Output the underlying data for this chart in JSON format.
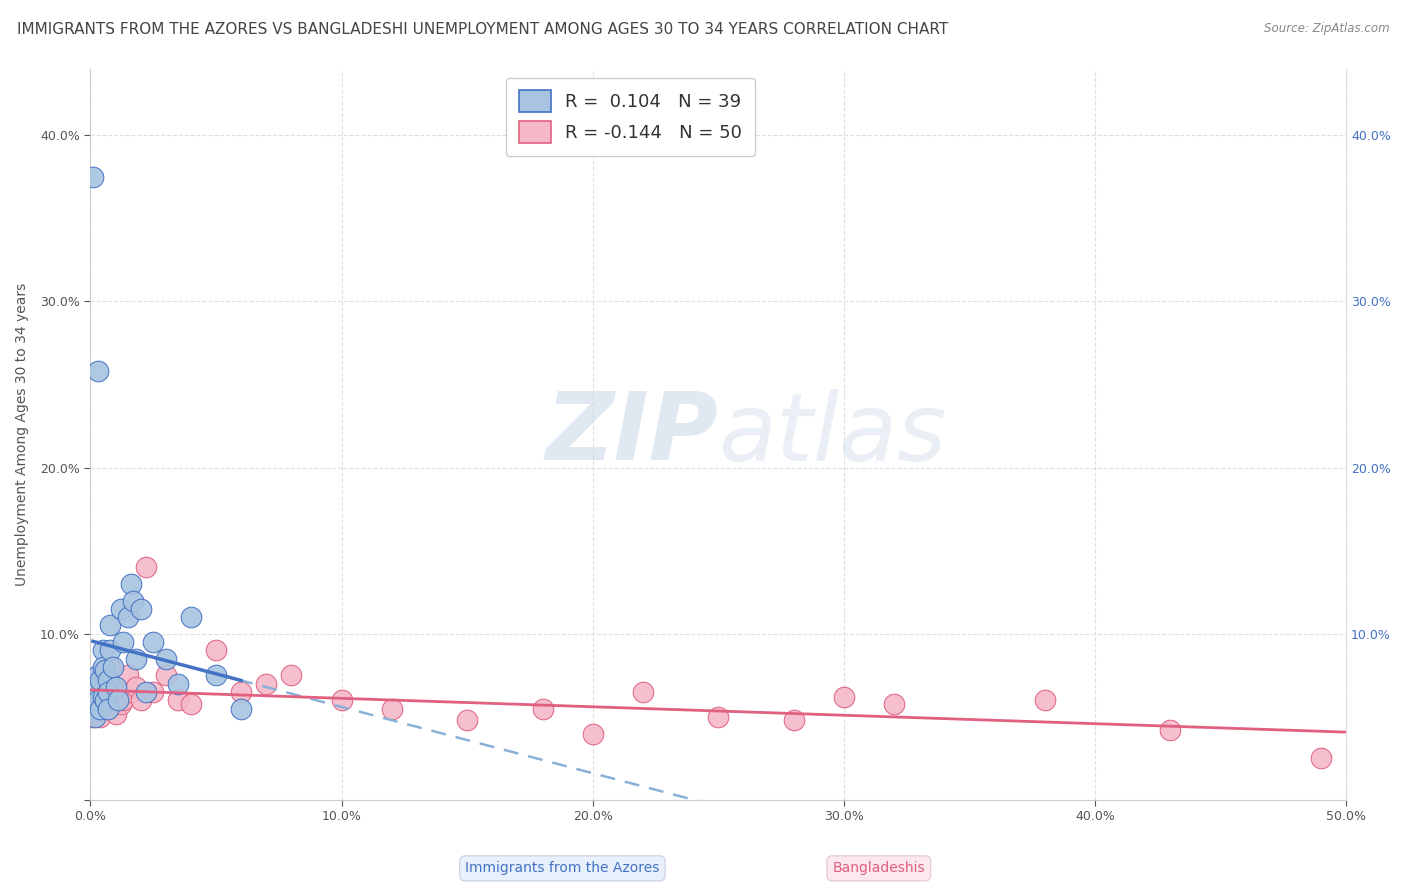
{
  "title": "IMMIGRANTS FROM THE AZORES VS BANGLADESHI UNEMPLOYMENT AMONG AGES 30 TO 34 YEARS CORRELATION CHART",
  "source": "Source: ZipAtlas.com",
  "ylabel": "Unemployment Among Ages 30 to 34 years",
  "xlim": [
    0.0,
    0.5
  ],
  "ylim": [
    0.0,
    0.44
  ],
  "xticks": [
    0.0,
    0.1,
    0.2,
    0.3,
    0.4,
    0.5
  ],
  "xticklabels": [
    "0.0%",
    "10.0%",
    "20.0%",
    "30.0%",
    "40.0%",
    "50.0%"
  ],
  "yticks": [
    0.0,
    0.1,
    0.2,
    0.3,
    0.4
  ],
  "yticklabels": [
    "",
    "10.0%",
    "20.0%",
    "30.0%",
    "40.0%"
  ],
  "right_yticklabels": [
    "",
    "10.0%",
    "20.0%",
    "30.0%",
    "40.0%"
  ],
  "azores_R": 0.104,
  "azores_N": 39,
  "bangladeshi_R": -0.144,
  "bangladeshi_N": 50,
  "azores_color": "#a8c4e0",
  "bangladeshi_color": "#f4b8c8",
  "azores_line_color": "#4472c4",
  "bangladeshi_line_color": "#e06080",
  "dashed_line_color": "#8ab0d8",
  "watermark_zip": "ZIP",
  "watermark_atlas": "atlas",
  "azores_x": [
    0.001,
    0.001,
    0.001,
    0.002,
    0.002,
    0.002,
    0.003,
    0.003,
    0.003,
    0.004,
    0.004,
    0.005,
    0.005,
    0.005,
    0.006,
    0.006,
    0.007,
    0.007,
    0.007,
    0.008,
    0.008,
    0.009,
    0.01,
    0.011,
    0.012,
    0.013,
    0.015,
    0.016,
    0.017,
    0.018,
    0.02,
    0.022,
    0.025,
    0.03,
    0.035,
    0.04,
    0.05,
    0.06,
    0.003
  ],
  "azores_y": [
    0.375,
    0.06,
    0.055,
    0.065,
    0.058,
    0.05,
    0.075,
    0.068,
    0.06,
    0.072,
    0.055,
    0.09,
    0.08,
    0.062,
    0.078,
    0.06,
    0.072,
    0.065,
    0.055,
    0.105,
    0.09,
    0.08,
    0.068,
    0.06,
    0.115,
    0.095,
    0.11,
    0.13,
    0.12,
    0.085,
    0.115,
    0.065,
    0.095,
    0.085,
    0.07,
    0.11,
    0.075,
    0.055,
    0.258
  ],
  "bangladeshi_x": [
    0.001,
    0.001,
    0.001,
    0.002,
    0.002,
    0.003,
    0.003,
    0.003,
    0.004,
    0.004,
    0.005,
    0.005,
    0.006,
    0.006,
    0.007,
    0.007,
    0.008,
    0.008,
    0.009,
    0.01,
    0.01,
    0.011,
    0.012,
    0.013,
    0.015,
    0.016,
    0.018,
    0.02,
    0.022,
    0.025,
    0.03,
    0.035,
    0.04,
    0.05,
    0.06,
    0.07,
    0.08,
    0.1,
    0.12,
    0.15,
    0.18,
    0.2,
    0.22,
    0.25,
    0.28,
    0.3,
    0.32,
    0.38,
    0.43,
    0.49
  ],
  "bangladeshi_y": [
    0.065,
    0.058,
    0.05,
    0.06,
    0.055,
    0.07,
    0.06,
    0.055,
    0.068,
    0.05,
    0.075,
    0.06,
    0.065,
    0.055,
    0.07,
    0.06,
    0.08,
    0.065,
    0.058,
    0.06,
    0.052,
    0.065,
    0.058,
    0.06,
    0.075,
    0.065,
    0.068,
    0.06,
    0.14,
    0.065,
    0.075,
    0.06,
    0.058,
    0.09,
    0.065,
    0.07,
    0.075,
    0.06,
    0.055,
    0.048,
    0.055,
    0.04,
    0.065,
    0.05,
    0.048,
    0.062,
    0.058,
    0.06,
    0.042,
    0.025
  ],
  "grid_color": "#cccccc",
  "bg_color": "#ffffff",
  "title_fontsize": 11,
  "axis_fontsize": 10,
  "tick_fontsize": 9,
  "legend_fontsize": 13
}
